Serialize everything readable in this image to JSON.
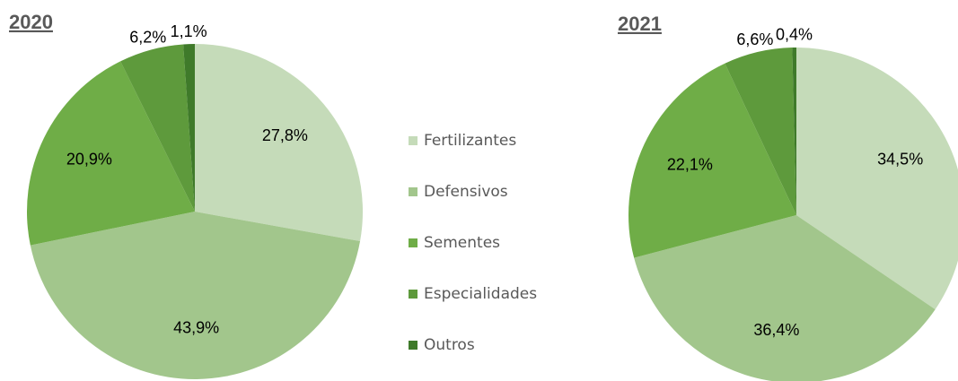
{
  "chart_data": [
    {
      "type": "pie",
      "title": "2020",
      "categories": [
        "Fertilizantes",
        "Defensivos",
        "Sementes",
        "Especialidades",
        "Outros"
      ],
      "values": [
        27.8,
        43.9,
        20.9,
        6.2,
        1.1
      ],
      "value_labels": [
        "27,8%",
        "43,9%",
        "20,9%",
        "6,2%",
        "1,1%"
      ],
      "colors": [
        "#c5dbb9",
        "#a2c68c",
        "#6fad47",
        "#5e9a3c",
        "#3f7a2a"
      ]
    },
    {
      "type": "pie",
      "title": "2021",
      "categories": [
        "Fertilizantes",
        "Defensivos",
        "Sementes",
        "Especialidades",
        "Outros"
      ],
      "values": [
        34.5,
        36.4,
        22.1,
        6.6,
        0.4
      ],
      "value_labels": [
        "34,5%",
        "36,4%",
        "22,1%",
        "6,6%",
        "0,4%"
      ],
      "colors": [
        "#c5dbb9",
        "#a2c68c",
        "#6fad47",
        "#5e9a3c",
        "#3f7a2a"
      ]
    }
  ]
}
